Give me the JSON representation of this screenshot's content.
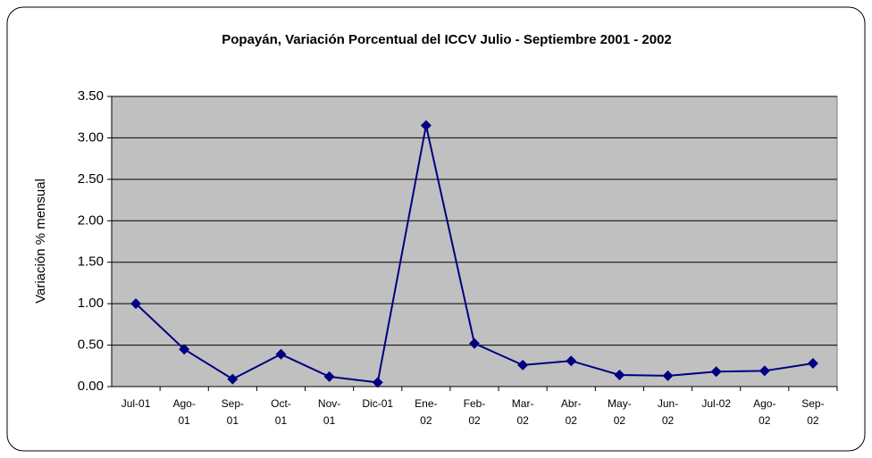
{
  "chart_data": {
    "type": "line",
    "title": "Popayán, Variación Porcentual del ICCV Julio - Septiembre 2001 - 2002",
    "y_label": "Variación % mensual",
    "categories": [
      "Jul-01",
      "Ago-01",
      "Sep-01",
      "Oct-01",
      "Nov-01",
      "Dic-01",
      "Ene-02",
      "Feb-02",
      "Mar-02",
      "Abr-02",
      "May-02",
      "Jun-02",
      "Jul-02",
      "Ago-02",
      "Sep-02"
    ],
    "series": [
      {
        "color": "#000080",
        "values": [
          1.0,
          0.45,
          0.09,
          0.39,
          0.12,
          0.05,
          3.15,
          0.52,
          0.26,
          0.31,
          0.14,
          0.13,
          0.18,
          0.19,
          0.28
        ]
      }
    ],
    "ylim": [
      0,
      3.5
    ],
    "yticks": [
      {
        "value": 0,
        "label": "0.00"
      },
      {
        "value": 0.5,
        "label": "0.50"
      },
      {
        "value": 1,
        "label": "1.00"
      },
      {
        "value": 1.5,
        "label": "1.50"
      },
      {
        "value": 2,
        "label": "2.00"
      },
      {
        "value": 2.5,
        "label": "2.50"
      },
      {
        "value": 3,
        "label": "3.00"
      },
      {
        "value": 3.5,
        "label": "3.50"
      }
    ],
    "grid": true,
    "plot_background": "#c0c0c0"
  }
}
